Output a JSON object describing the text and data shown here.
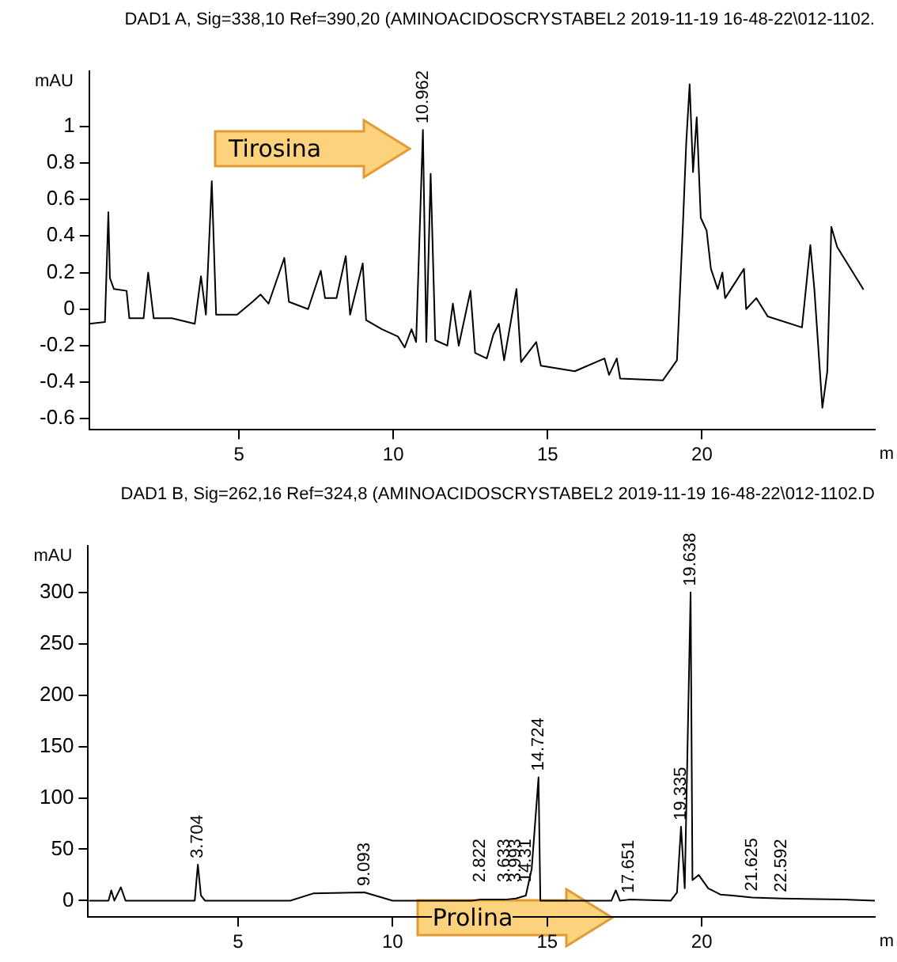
{
  "chart_data": [
    {
      "type": "line",
      "title": "DAD1 A, Sig=338,10 Ref=390,20 (AMINOACIDOSCRYSTABEL2 2019-11-19 16-48-22\\012-1102.",
      "xlabel": "m",
      "ylabel": "mAU",
      "xlim": [
        0.15,
        25.6
      ],
      "xticks": [
        5,
        10,
        15,
        20
      ],
      "ylim": [
        -0.66,
        1.3
      ],
      "yticks": [
        -0.6,
        -0.4,
        -0.2,
        0,
        0.2,
        0.4,
        0.6,
        0.8,
        1
      ],
      "grid": false,
      "legend": false,
      "marker": "none",
      "line_style": "solid",
      "series": [
        {
          "color": "#000000",
          "x": [
            0.16,
            0.66,
            0.77,
            0.82,
            0.95,
            1.36,
            1.45,
            1.91,
            2.06,
            2.24,
            2.83,
            3.57,
            3.77,
            3.93,
            4.12,
            4.26,
            4.94,
            5.44,
            5.7,
            5.96,
            6.47,
            6.62,
            7.24,
            7.65,
            7.79,
            8.16,
            8.46,
            8.6,
            9.01,
            9.12,
            9.63,
            10.15,
            10.37,
            10.59,
            10.74,
            10.96,
            11.07,
            11.21,
            11.36,
            11.75,
            11.93,
            12.12,
            12.5,
            12.65,
            13.03,
            13.24,
            13.42,
            13.59,
            13.99,
            14.14,
            14.63,
            14.78,
            15.88,
            16.84,
            16.99,
            17.24,
            17.35,
            18.73,
            19.19,
            19.38,
            19.49,
            19.6,
            19.71,
            19.83,
            19.96,
            20.15,
            20.29,
            20.51,
            20.66,
            20.75,
            21.36,
            21.43,
            21.76,
            22.13,
            23.24,
            23.51,
            23.64,
            23.9,
            24.06,
            24.19,
            24.38,
            25.22
          ],
          "values": [
            -0.08,
            -0.07,
            0.53,
            0.17,
            0.11,
            0.1,
            -0.05,
            -0.05,
            0.2,
            -0.05,
            -0.05,
            -0.08,
            0.18,
            -0.03,
            0.7,
            -0.03,
            -0.03,
            0.04,
            0.08,
            0.03,
            0.28,
            0.04,
            0,
            0.21,
            0.06,
            0.06,
            0.29,
            -0.03,
            0.25,
            -0.06,
            -0.11,
            -0.15,
            -0.21,
            -0.11,
            -0.18,
            0.98,
            -0.18,
            0.74,
            -0.17,
            -0.2,
            0.03,
            -0.2,
            0.1,
            -0.24,
            -0.27,
            -0.14,
            -0.08,
            -0.28,
            0.11,
            -0.29,
            -0.18,
            -0.31,
            -0.34,
            -0.27,
            -0.36,
            -0.27,
            -0.38,
            -0.39,
            -0.28,
            0.45,
            0.91,
            1.23,
            0.75,
            1.05,
            0.5,
            0.43,
            0.22,
            0.11,
            0.2,
            0.06,
            0.22,
            0,
            0.06,
            -0.04,
            -0.1,
            0.35,
            0.11,
            -0.54,
            -0.34,
            0.45,
            0.34,
            0.11
          ]
        }
      ],
      "annotations": [
        "Tirosina",
        {
          "text": "10.962",
          "x": 10.96,
          "y": 0.98
        }
      ]
    },
    {
      "type": "line",
      "title": "DAD1 B, Sig=262,16 Ref=324,8 (AMINOACIDOSCRYSTABEL2 2019-11-19 16-48-22\\012-1102.D",
      "xlabel": "m",
      "ylabel": "mAU",
      "xlim": [
        0.15,
        25.6
      ],
      "xticks": [
        5,
        10,
        15,
        20
      ],
      "ylim": [
        -16,
        345
      ],
      "yticks": [
        0,
        50,
        100,
        150,
        200,
        250,
        300
      ],
      "grid": false,
      "legend": false,
      "marker": "none",
      "line_style": "solid",
      "series": [
        {
          "color": "#000000",
          "x": [
            0.2,
            0.6,
            0.81,
            0.9,
            1.0,
            1.21,
            1.36,
            3.6,
            3.7,
            3.8,
            3.93,
            6.69,
            7.43,
            9.09,
            10.0,
            12.57,
            12.82,
            13.63,
            13.99,
            14.31,
            14.5,
            14.72,
            14.78,
            16.5,
            17.08,
            17.22,
            17.35,
            17.65,
            19.0,
            19.2,
            19.33,
            19.45,
            19.64,
            19.7,
            19.9,
            20.21,
            20.6,
            21.0,
            21.63,
            22.59,
            24.58,
            25.6
          ],
          "values": [
            0,
            0,
            0,
            10,
            0,
            13,
            0,
            0,
            35,
            5,
            0,
            0,
            7,
            8,
            0,
            0,
            1,
            1,
            2,
            5,
            31,
            120,
            0,
            0,
            0,
            10,
            0,
            1,
            0,
            8,
            72,
            12,
            300,
            20,
            25,
            12,
            6,
            5,
            3,
            2,
            1,
            0
          ]
        }
      ],
      "annotations": [
        "Prolina",
        {
          "text": "3.704",
          "x": 3.7,
          "y": 35
        },
        {
          "text": "9.093",
          "x": 9.09,
          "y": 8
        },
        {
          "text": "2.822",
          "x": 12.82,
          "y": 1
        },
        {
          "text": "3.633",
          "x": 13.63,
          "y": 1
        },
        {
          "text": "3.993",
          "x": 13.99,
          "y": 2
        },
        {
          "text": "14.31",
          "x": 14.31,
          "y": 5
        },
        {
          "text": "14.724",
          "x": 14.72,
          "y": 120
        },
        {
          "text": "17.651",
          "x": 17.65,
          "y": 1
        },
        {
          "text": "19.335",
          "x": 19.33,
          "y": 72
        },
        {
          "text": "19.638",
          "x": 19.64,
          "y": 300
        },
        {
          "text": "21.625",
          "x": 21.63,
          "y": 3
        },
        {
          "text": "22.592",
          "x": 22.59,
          "y": 2
        }
      ]
    }
  ]
}
